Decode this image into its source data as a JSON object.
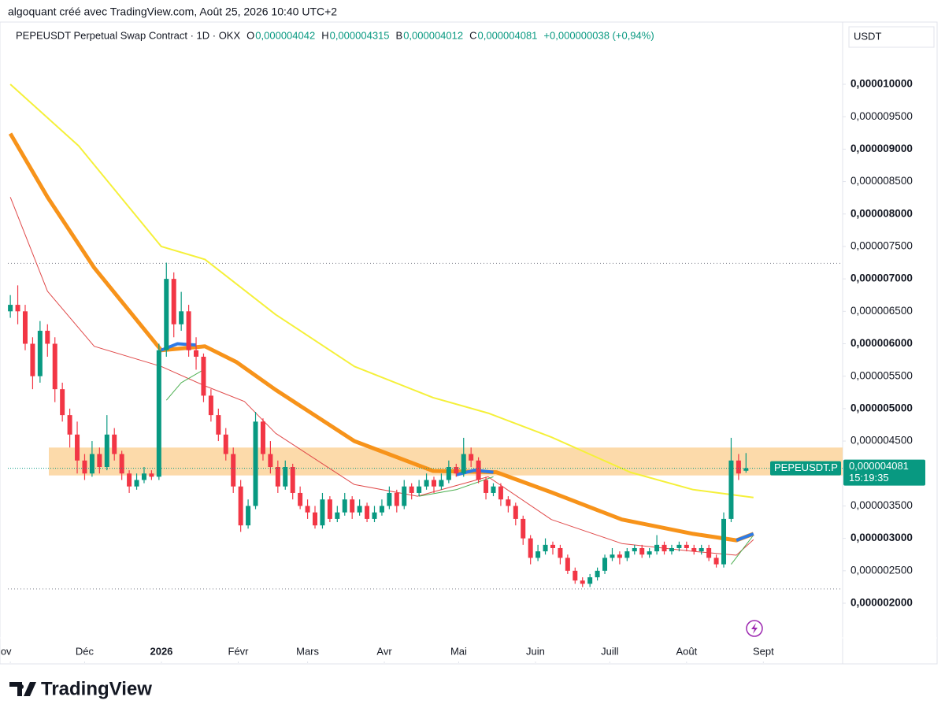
{
  "header": "algoquant créé avec TradingView.com, Août 25, 2026 10:40 UTC+2",
  "legend": {
    "symbol": "PEPEUSDT Perpetual Swap Contract · 1D · OKX",
    "o_label": "O",
    "o": "0,000004042",
    "h_label": "H",
    "h": "0,000004315",
    "b_label": "B",
    "b": "0,000004012",
    "c_label": "C",
    "c": "0,000004081",
    "change": "+0,000000038 (+0,94%)"
  },
  "currency": "USDT",
  "brand": "TradingView",
  "chart_data": {
    "type": "candlestick",
    "up_color": "#089981",
    "down_color": "#f23645",
    "ylim": [
      1.8e-06,
      1.03e-05
    ],
    "xlim": [
      -0.33,
      112
    ],
    "yticks": [
      {
        "value": 1e-05,
        "label": "0,000010000"
      },
      {
        "value": 9.5e-06,
        "label": "0,000009500"
      },
      {
        "value": 9e-06,
        "label": "0,000009000"
      },
      {
        "value": 8.5e-06,
        "label": "0,000008500"
      },
      {
        "value": 8e-06,
        "label": "0,000008000"
      },
      {
        "value": 7.5e-06,
        "label": "0,000007500"
      },
      {
        "value": 7e-06,
        "label": "0,000007000"
      },
      {
        "value": 6.5e-06,
        "label": "0,000006500"
      },
      {
        "value": 6e-06,
        "label": "0,000006000"
      },
      {
        "value": 5.5e-06,
        "label": "0,000005500"
      },
      {
        "value": 5e-06,
        "label": "0,000005000"
      },
      {
        "value": 4.5e-06,
        "label": "0,000004500"
      },
      {
        "value": 3.5e-06,
        "label": "0,000003500"
      },
      {
        "value": 3e-06,
        "label": "0,000003000"
      },
      {
        "value": 2.5e-06,
        "label": "0,000002500"
      },
      {
        "value": 2e-06,
        "label": "0,000002000"
      }
    ],
    "xticks": [
      {
        "value": 0,
        "label": "Nov"
      },
      {
        "value": 10,
        "label": "Déc"
      },
      {
        "value": 20.33,
        "label": "2026"
      },
      {
        "value": 30.67,
        "label": "Févr"
      },
      {
        "value": 40,
        "label": "Mars"
      },
      {
        "value": 50.33,
        "label": "Avr"
      },
      {
        "value": 60.33,
        "label": "Mai"
      },
      {
        "value": 70.67,
        "label": "Juin"
      },
      {
        "value": 80.67,
        "label": "Juill"
      },
      {
        "value": 91,
        "label": "Août"
      },
      {
        "value": 101.33,
        "label": "Sept"
      }
    ],
    "zone": {
      "from": 3.97e-06,
      "to": 4.4e-06,
      "color": "#fbd39b"
    },
    "hlines": [
      7.24e-06,
      2.22e-06
    ],
    "last_price": {
      "symbol": "PEPEUSDT.P",
      "value": 4.081e-06,
      "label": "0,000004081",
      "countdown": "15:19:35",
      "color": "#089981"
    },
    "candles": [
      [
        6.5e-06,
        6.75e-06,
        6.4e-06,
        6.6e-06
      ],
      [
        6.6e-06,
        6.9e-06,
        6.3e-06,
        6.5e-06
      ],
      [
        6.5e-06,
        6.6e-06,
        5.9e-06,
        6e-06
      ],
      [
        6e-06,
        6.1e-06,
        5.3e-06,
        5.5e-06
      ],
      [
        5.5e-06,
        6.35e-06,
        5.4e-06,
        6.2e-06
      ],
      [
        6.2e-06,
        6.3e-06,
        5.8e-06,
        6e-06
      ],
      [
        6e-06,
        6.1e-06,
        5.1e-06,
        5.3e-06
      ],
      [
        5.3e-06,
        5.4e-06,
        4.8e-06,
        4.9e-06
      ],
      [
        4.9e-06,
        5e-06,
        4.4e-06,
        4.6e-06
      ],
      [
        4.6e-06,
        4.8e-06,
        4e-06,
        4.2e-06
      ],
      [
        4.2e-06,
        4.3e-06,
        3.9e-06,
        4e-06
      ],
      [
        4e-06,
        4.5e-06,
        3.95e-06,
        4.3e-06
      ],
      [
        4.3e-06,
        4.4e-06,
        4e-06,
        4.1e-06
      ],
      [
        4.1e-06,
        4.9e-06,
        4.05e-06,
        4.6e-06
      ],
      [
        4.6e-06,
        4.7e-06,
        4.2e-06,
        4.3e-06
      ],
      [
        4.3e-06,
        4.35e-06,
        3.9e-06,
        4e-06
      ],
      [
        4e-06,
        4.05e-06,
        3.7e-06,
        3.8e-06
      ],
      [
        3.8e-06,
        4e-06,
        3.75e-06,
        3.9e-06
      ],
      [
        3.9e-06,
        4.1e-06,
        3.85e-06,
        4e-06
      ],
      [
        4e-06,
        4.05e-06,
        3.9e-06,
        3.95e-06
      ],
      [
        3.95e-06,
        6e-06,
        3.9e-06,
        5.9e-06
      ],
      [
        5.9e-06,
        7.25e-06,
        5.8e-06,
        7e-06
      ],
      [
        7e-06,
        7.1e-06,
        6.1e-06,
        6.3e-06
      ],
      [
        6.3e-06,
        6.8e-06,
        6.2e-06,
        6.5e-06
      ],
      [
        6.5e-06,
        6.6e-06,
        5.8e-06,
        5.9e-06
      ],
      [
        5.9e-06,
        6.1e-06,
        5.6e-06,
        5.8e-06
      ],
      [
        5.8e-06,
        5.85e-06,
        5.1e-06,
        5.2e-06
      ],
      [
        5.2e-06,
        5.3e-06,
        4.8e-06,
        4.9e-06
      ],
      [
        4.9e-06,
        5e-06,
        4.5e-06,
        4.6e-06
      ],
      [
        4.6e-06,
        4.7e-06,
        4.2e-06,
        4.3e-06
      ],
      [
        4.3e-06,
        4.4e-06,
        3.7e-06,
        3.8e-06
      ],
      [
        3.8e-06,
        3.9e-06,
        3.1e-06,
        3.2e-06
      ],
      [
        3.2e-06,
        3.6e-06,
        3.15e-06,
        3.5e-06
      ],
      [
        3.5e-06,
        4.95e-06,
        3.45e-06,
        4.8e-06
      ],
      [
        4.8e-06,
        4.85e-06,
        4.2e-06,
        4.3e-06
      ],
      [
        4.3e-06,
        4.5e-06,
        4e-06,
        4.1e-06
      ],
      [
        4.1e-06,
        4.2e-06,
        3.7e-06,
        3.8e-06
      ],
      [
        3.8e-06,
        4.2e-06,
        3.75e-06,
        4.1e-06
      ],
      [
        4.1e-06,
        4.15e-06,
        3.6e-06,
        3.7e-06
      ],
      [
        3.7e-06,
        3.8e-06,
        3.45e-06,
        3.5e-06
      ],
      [
        3.5e-06,
        3.6e-06,
        3.3e-06,
        3.4e-06
      ],
      [
        3.4e-06,
        3.5e-06,
        3.15e-06,
        3.2e-06
      ],
      [
        3.2e-06,
        3.7e-06,
        3.15e-06,
        3.6e-06
      ],
      [
        3.6e-06,
        3.65e-06,
        3.25e-06,
        3.3e-06
      ],
      [
        3.3e-06,
        3.5e-06,
        3.25e-06,
        3.4e-06
      ],
      [
        3.4e-06,
        3.7e-06,
        3.35e-06,
        3.6e-06
      ],
      [
        3.6e-06,
        3.65e-06,
        3.3e-06,
        3.4e-06
      ],
      [
        3.4e-06,
        3.6e-06,
        3.35e-06,
        3.5e-06
      ],
      [
        3.5e-06,
        3.55e-06,
        3.25e-06,
        3.3e-06
      ],
      [
        3.3e-06,
        3.5e-06,
        3.25e-06,
        3.4e-06
      ],
      [
        3.4e-06,
        3.6e-06,
        3.35e-06,
        3.5e-06
      ],
      [
        3.5e-06,
        3.8e-06,
        3.45e-06,
        3.7e-06
      ],
      [
        3.7e-06,
        3.75e-06,
        3.4e-06,
        3.5e-06
      ],
      [
        3.5e-06,
        3.9e-06,
        3.45e-06,
        3.8e-06
      ],
      [
        3.8e-06,
        3.85e-06,
        3.6e-06,
        3.7e-06
      ],
      [
        3.7e-06,
        3.9e-06,
        3.65e-06,
        3.8e-06
      ],
      [
        3.8e-06,
        4e-06,
        3.75e-06,
        3.9e-06
      ],
      [
        3.9e-06,
        3.95e-06,
        3.7e-06,
        3.8e-06
      ],
      [
        3.8e-06,
        4e-06,
        3.75e-06,
        3.9e-06
      ],
      [
        3.9e-06,
        4.2e-06,
        3.85e-06,
        4.1e-06
      ],
      [
        4.1e-06,
        4.15e-06,
        3.95e-06,
        4e-06
      ],
      [
        4e-06,
        4.55e-06,
        3.95e-06,
        4.3e-06
      ],
      [
        4.3e-06,
        4.4e-06,
        4.1e-06,
        4.2e-06
      ],
      [
        4.2e-06,
        4.25e-06,
        3.85e-06,
        3.9e-06
      ],
      [
        3.9e-06,
        3.95e-06,
        3.6e-06,
        3.7e-06
      ],
      [
        3.7e-06,
        3.85e-06,
        3.65e-06,
        3.8e-06
      ],
      [
        3.8e-06,
        3.85e-06,
        3.5e-06,
        3.6e-06
      ],
      [
        3.6e-06,
        3.65e-06,
        3.4e-06,
        3.5e-06
      ],
      [
        3.5e-06,
        3.55e-06,
        3.2e-06,
        3.3e-06
      ],
      [
        3.3e-06,
        3.35e-06,
        2.9e-06,
        3e-06
      ],
      [
        3e-06,
        3.05e-06,
        2.6e-06,
        2.7e-06
      ],
      [
        2.7e-06,
        2.9e-06,
        2.65e-06,
        2.8e-06
      ],
      [
        2.8e-06,
        3e-06,
        2.75e-06,
        2.9e-06
      ],
      [
        2.9e-06,
        2.95e-06,
        2.75e-06,
        2.85e-06
      ],
      [
        2.85e-06,
        2.9e-06,
        2.6e-06,
        2.7e-06
      ],
      [
        2.7e-06,
        2.75e-06,
        2.45e-06,
        2.5e-06
      ],
      [
        2.5e-06,
        2.55e-06,
        2.3e-06,
        2.35e-06
      ],
      [
        2.35e-06,
        2.4e-06,
        2.25e-06,
        2.3e-06
      ],
      [
        2.3e-06,
        2.45e-06,
        2.25e-06,
        2.4e-06
      ],
      [
        2.4e-06,
        2.55e-06,
        2.35e-06,
        2.5e-06
      ],
      [
        2.5e-06,
        2.75e-06,
        2.45e-06,
        2.7e-06
      ],
      [
        2.7e-06,
        2.85e-06,
        2.65e-06,
        2.75e-06
      ],
      [
        2.75e-06,
        2.8e-06,
        2.6e-06,
        2.7e-06
      ],
      [
        2.7e-06,
        2.85e-06,
        2.65e-06,
        2.8e-06
      ],
      [
        2.8e-06,
        2.9e-06,
        2.75e-06,
        2.85e-06
      ],
      [
        2.85e-06,
        2.9e-06,
        2.7e-06,
        2.75e-06
      ],
      [
        2.75e-06,
        2.85e-06,
        2.7e-06,
        2.8e-06
      ],
      [
        2.8e-06,
        3.05e-06,
        2.75e-06,
        2.9e-06
      ],
      [
        2.9e-06,
        2.95e-06,
        2.75e-06,
        2.8e-06
      ],
      [
        2.8e-06,
        2.9e-06,
        2.75e-06,
        2.85e-06
      ],
      [
        2.85e-06,
        2.95e-06,
        2.8e-06,
        2.9e-06
      ],
      [
        2.9e-06,
        2.95e-06,
        2.8e-06,
        2.85e-06
      ],
      [
        2.85e-06,
        2.9e-06,
        2.75e-06,
        2.8e-06
      ],
      [
        2.8e-06,
        2.9e-06,
        2.75e-06,
        2.85e-06
      ],
      [
        2.85e-06,
        2.9e-06,
        2.65e-06,
        2.7e-06
      ],
      [
        2.7e-06,
        2.75e-06,
        2.55e-06,
        2.6e-06
      ],
      [
        2.6e-06,
        3.4e-06,
        2.55e-06,
        3.3e-06
      ],
      [
        3.3e-06,
        4.55e-06,
        3.25e-06,
        4.2e-06
      ],
      [
        4.2e-06,
        4.3e-06,
        3.9e-06,
        4e-06
      ],
      [
        4.042e-06,
        4.315e-06,
        4.012e-06,
        4.081e-06
      ]
    ],
    "lines": [
      {
        "color": "#f5f03a",
        "width": 2,
        "x": [
          0,
          9.2,
          20.3,
          26.2,
          35.7,
          46.3,
          56.9,
          64.3,
          72.8,
          83.4,
          91.9,
          100
        ],
        "values": [
          1e-05,
          9.05e-06,
          7.5e-06,
          7.3e-06,
          6.45e-06,
          5.65e-06,
          5.17e-06,
          4.93e-06,
          4.56e-06,
          4.02e-06,
          3.75e-06,
          3.63e-06
        ]
      },
      {
        "color": "#e04a4a",
        "width": 1,
        "x": [
          0,
          5,
          11.3,
          20.3,
          26.2,
          31.5,
          35.7,
          46.3,
          54.8,
          64.3,
          72.8,
          82.3,
          91.9,
          97.7,
          100
        ],
        "values": [
          8.26e-06,
          6.81e-06,
          5.96e-06,
          5.65e-06,
          5.35e-06,
          5.11e-06,
          4.62e-06,
          3.83e-06,
          3.65e-06,
          3.95e-06,
          3.29e-06,
          2.92e-06,
          2.8e-06,
          2.74e-06,
          2.98e-06
        ]
      },
      {
        "color": "#4caf50",
        "width": 1,
        "x": [
          21,
          23,
          26,
          40,
          55,
          60,
          65,
          80,
          97,
          100
        ],
        "values": [
          5.13e-06,
          5.4e-06,
          5.6e-06,
          null,
          3.65e-06,
          3.75e-06,
          3.95e-06,
          null,
          2.6e-06,
          3.05e-06
        ]
      },
      {
        "color": "#f7931a",
        "width": 5,
        "x": [
          0,
          5,
          11.3,
          20.3,
          26.2,
          30.4,
          35.7,
          46.3,
          56.9,
          65.4,
          72.8,
          82.3,
          91.9,
          97.7,
          100
        ],
        "values": [
          9.24e-06,
          8.26e-06,
          7.17e-06,
          5.9e-06,
          5.96e-06,
          5.72e-06,
          5.29e-06,
          4.5e-06,
          4.04e-06,
          4.02e-06,
          3.71e-06,
          3.29e-06,
          3.07e-06,
          2.97e-06,
          3.07e-06
        ]
      },
      {
        "color": "#2e7be6",
        "width": 4,
        "x": [
          20.3,
          22.5,
          25,
          40,
          60,
          62.5,
          65,
          80,
          97.7,
          100
        ],
        "values": [
          5.9e-06,
          6e-06,
          5.98e-06,
          null,
          3.98e-06,
          4.05e-06,
          4.02e-06,
          null,
          2.97e-06,
          3.07e-06
        ]
      }
    ]
  }
}
